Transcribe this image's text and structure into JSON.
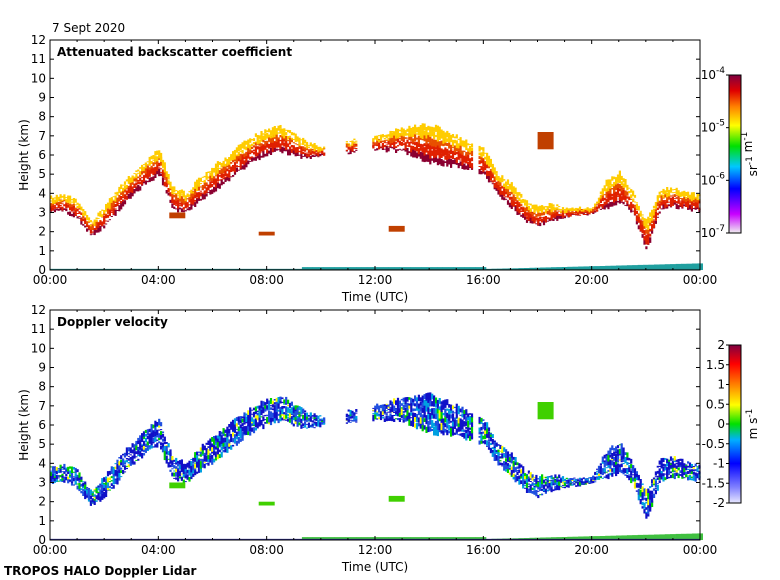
{
  "date_label": "7 Sept 2020",
  "footer": "TROPOS HALO Doppler Lidar",
  "chart_data": [
    {
      "type": "heatmap",
      "title": "Attenuated backscatter coefficient",
      "xlabel": "Time (UTC)",
      "ylabel": "Height (km)",
      "x_ticks": [
        "00:00",
        "04:00",
        "08:00",
        "12:00",
        "16:00",
        "20:00",
        "00:00"
      ],
      "y_ticks": [
        "0",
        "1",
        "2",
        "3",
        "4",
        "5",
        "6",
        "7",
        "8",
        "9",
        "10",
        "11",
        "12"
      ],
      "xlim_hours": [
        0,
        24
      ],
      "ylim_km": [
        0,
        12
      ],
      "colorbar": {
        "label": "sr-1 m-1",
        "scale": "log",
        "ticks": [
          {
            "base": "10",
            "exp": "-4",
            "value": 0.0001
          },
          {
            "base": "10",
            "exp": "-5",
            "value": 1e-05
          },
          {
            "base": "10",
            "exp": "-6",
            "value": 1e-06
          },
          {
            "base": "10",
            "exp": "-7",
            "value": 1e-07
          }
        ],
        "range": [
          1e-07,
          0.0001
        ]
      }
    },
    {
      "type": "heatmap",
      "title": "Doppler velocity",
      "xlabel": "Time (UTC)",
      "ylabel": "Height (km)",
      "x_ticks": [
        "00:00",
        "04:00",
        "08:00",
        "12:00",
        "16:00",
        "20:00",
        "00:00"
      ],
      "y_ticks": [
        "0",
        "1",
        "2",
        "3",
        "4",
        "5",
        "6",
        "7",
        "8",
        "9",
        "10",
        "11",
        "12"
      ],
      "xlim_hours": [
        0,
        24
      ],
      "ylim_km": [
        0,
        12
      ],
      "colorbar": {
        "label": "m s-1",
        "scale": "linear",
        "ticks": [
          "2",
          "1.5",
          "1",
          "0.5",
          "0",
          "-0.5",
          "-1",
          "-1.5",
          "-2"
        ],
        "range": [
          -2,
          2
        ]
      }
    }
  ],
  "cloud_trace": {
    "hours": [
      0,
      0.5,
      1,
      1.5,
      2,
      2.5,
      3,
      3.5,
      4,
      4.5,
      5,
      5.5,
      6,
      6.5,
      7,
      7.5,
      8,
      8.5,
      9,
      9.5,
      10,
      12,
      13,
      14,
      15,
      16,
      16.5,
      17,
      17.5,
      18,
      18.5,
      19,
      19.5,
      20,
      20.5,
      21,
      21.5,
      22,
      22.5,
      23,
      23.5,
      24
    ],
    "base_km": [
      3.0,
      3.1,
      2.7,
      1.8,
      2.3,
      3.1,
      3.9,
      4.5,
      5.0,
      3.2,
      3.0,
      3.6,
      4.1,
      4.6,
      5.2,
      5.7,
      6.0,
      6.2,
      6.0,
      5.8,
      6.0,
      6.3,
      6.2,
      5.6,
      5.4,
      5.0,
      4.0,
      3.3,
      2.6,
      2.3,
      2.6,
      2.8,
      2.9,
      3.0,
      3.2,
      3.5,
      3.0,
      1.0,
      3.1,
      3.3,
      3.2,
      3.1
    ],
    "top_km": [
      3.8,
      3.9,
      3.6,
      2.5,
      3.3,
      4.3,
      5.0,
      5.7,
      6.3,
      4.3,
      4.0,
      4.8,
      5.4,
      5.9,
      6.5,
      7.0,
      7.3,
      7.5,
      7.1,
      6.6,
      6.4,
      7.0,
      7.4,
      7.6,
      7.0,
      6.3,
      5.0,
      4.5,
      3.6,
      3.3,
      3.4,
      3.2,
      3.2,
      3.2,
      4.6,
      5.1,
      4.0,
      2.5,
      4.2,
      4.3,
      4.0,
      3.9
    ]
  },
  "isolated_features": [
    {
      "hour": 8.0,
      "base_km": 1.8,
      "top_km": 2.0
    },
    {
      "hour": 12.8,
      "base_km": 2.0,
      "top_km": 2.3
    },
    {
      "hour": 18.3,
      "base_km": 6.3,
      "top_km": 7.2
    },
    {
      "hour": 4.7,
      "base_km": 2.7,
      "top_km": 3.0
    }
  ],
  "colors": {
    "backscatter_low": "#00c8ff",
    "backscatter_mid": "#ffcc00",
    "backscatter_high": "#e85000",
    "backscatter_max": "#8b0030",
    "velocity_neg": "#1010c8",
    "velocity_zero": "#00d000",
    "velocity_pos": "#ffff00",
    "near_ground": "#20a0a0"
  }
}
